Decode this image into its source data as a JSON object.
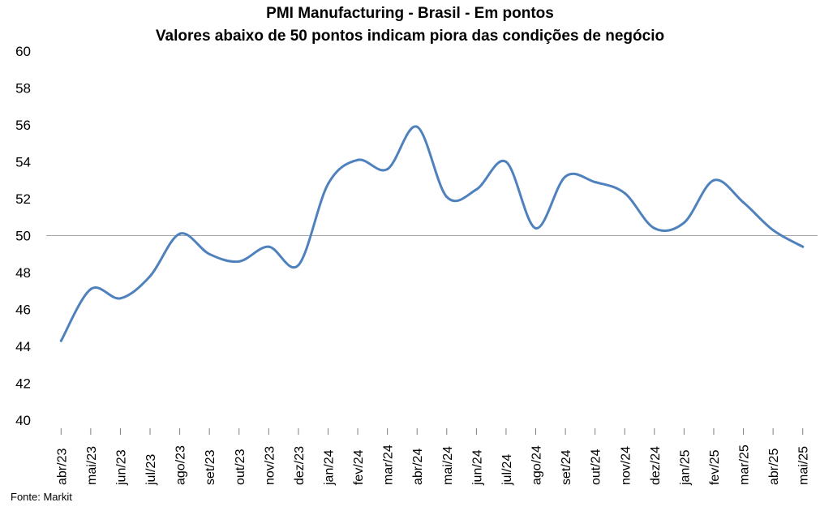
{
  "chart_data": {
    "type": "line",
    "title": "PMI Manufacturing - Brasil - Em pontos",
    "subtitle": "Valores abaixo de 50 pontos indicam piora das condições de negócio",
    "source": "Fonte: Markit",
    "ylim": [
      40,
      60
    ],
    "yticks": [
      40,
      42,
      44,
      46,
      48,
      50,
      52,
      54,
      56,
      58,
      60
    ],
    "reference_line": 50,
    "grid": false,
    "legend": "none",
    "colors": {
      "series": "#4F81BD",
      "reference": "#A6A6A6"
    },
    "categories": [
      "abr/23",
      "mai/23",
      "jun/23",
      "jul/23",
      "ago/23",
      "set/23",
      "out/23",
      "nov/23",
      "dez/23",
      "jan/24",
      "fev/24",
      "mar/24",
      "abr/24",
      "mai/24",
      "jun/24",
      "jul/24",
      "ago/24",
      "set/24",
      "out/24",
      "nov/24",
      "dez/24",
      "jan/25",
      "fev/25",
      "mar/25",
      "abr/25",
      "mai/25"
    ],
    "series": [
      {
        "values": [
          44.3,
          47.1,
          46.6,
          47.8,
          50.1,
          49.0,
          48.6,
          49.4,
          48.4,
          52.8,
          54.1,
          53.6,
          55.9,
          52.1,
          52.5,
          54.0,
          50.4,
          53.2,
          52.9,
          52.3,
          50.4,
          50.7,
          53.0,
          51.8,
          50.3,
          49.4
        ]
      }
    ]
  }
}
